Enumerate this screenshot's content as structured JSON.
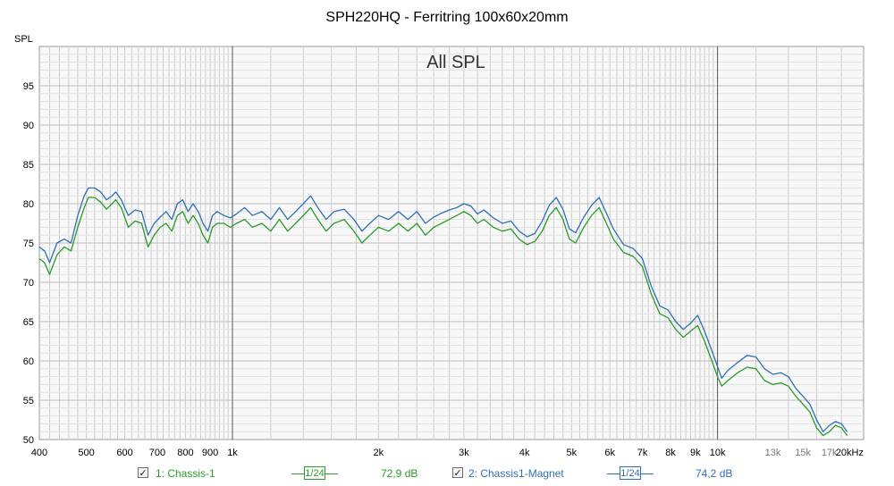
{
  "chart_data": {
    "type": "line",
    "title": "SPH220HQ - Ferritring 100x60x20mm",
    "subtitle": "All SPL",
    "ylabel": "SPL",
    "xunit": "kHz",
    "xscale": "log",
    "xlim": [
      400,
      20000
    ],
    "ylim": [
      50,
      100
    ],
    "grid": true,
    "yticks": [
      50,
      55,
      60,
      65,
      70,
      75,
      80,
      85,
      90,
      95
    ],
    "xticks": [
      {
        "v": 400,
        "label": "400"
      },
      {
        "v": 500,
        "label": "500"
      },
      {
        "v": 600,
        "label": "600"
      },
      {
        "v": 700,
        "label": "700"
      },
      {
        "v": 800,
        "label": "800"
      },
      {
        "v": 900,
        "label": "900"
      },
      {
        "v": 1000,
        "label": "1k"
      },
      {
        "v": 2000,
        "label": "2k"
      },
      {
        "v": 3000,
        "label": "3k"
      },
      {
        "v": 4000,
        "label": "4k"
      },
      {
        "v": 5000,
        "label": "5k"
      },
      {
        "v": 6000,
        "label": "6k"
      },
      {
        "v": 7000,
        "label": "7k"
      },
      {
        "v": 8000,
        "label": "8k"
      },
      {
        "v": 9000,
        "label": "9k"
      },
      {
        "v": 10000,
        "label": "10k"
      },
      {
        "v": 13000,
        "label": "13k"
      },
      {
        "v": 15000,
        "label": "15k"
      },
      {
        "v": 17000,
        "label": "17k"
      },
      {
        "v": 20000,
        "label": "20kHz"
      }
    ],
    "series": [
      {
        "name": "1: Chassis-1",
        "color": "#2a9a2a",
        "smoothing": "1/24",
        "avg_label": "72,9 dB",
        "points": [
          [
            400,
            73.0
          ],
          [
            410,
            72.5
          ],
          [
            420,
            71.0
          ],
          [
            435,
            73.5
          ],
          [
            450,
            74.5
          ],
          [
            465,
            74.0
          ],
          [
            480,
            77.0
          ],
          [
            495,
            79.5
          ],
          [
            505,
            80.8
          ],
          [
            520,
            80.8
          ],
          [
            535,
            80.2
          ],
          [
            550,
            79.3
          ],
          [
            565,
            80.0
          ],
          [
            575,
            80.5
          ],
          [
            590,
            79.5
          ],
          [
            610,
            77.0
          ],
          [
            630,
            77.8
          ],
          [
            650,
            77.5
          ],
          [
            670,
            74.5
          ],
          [
            690,
            76.0
          ],
          [
            710,
            77.0
          ],
          [
            730,
            77.5
          ],
          [
            750,
            76.5
          ],
          [
            770,
            78.5
          ],
          [
            790,
            79.0
          ],
          [
            810,
            77.5
          ],
          [
            830,
            78.5
          ],
          [
            850,
            77.5
          ],
          [
            870,
            76.0
          ],
          [
            890,
            75.0
          ],
          [
            910,
            77.0
          ],
          [
            930,
            77.5
          ],
          [
            960,
            77.5
          ],
          [
            990,
            77.0
          ],
          [
            1020,
            77.5
          ],
          [
            1060,
            78.0
          ],
          [
            1100,
            77.0
          ],
          [
            1150,
            77.5
          ],
          [
            1200,
            76.5
          ],
          [
            1250,
            78.0
          ],
          [
            1300,
            76.5
          ],
          [
            1350,
            77.5
          ],
          [
            1400,
            78.5
          ],
          [
            1450,
            79.5
          ],
          [
            1500,
            78.0
          ],
          [
            1560,
            76.5
          ],
          [
            1620,
            77.5
          ],
          [
            1700,
            78.0
          ],
          [
            1780,
            76.5
          ],
          [
            1850,
            75.0
          ],
          [
            1920,
            76.0
          ],
          [
            2000,
            77.0
          ],
          [
            2100,
            76.5
          ],
          [
            2200,
            77.5
          ],
          [
            2300,
            76.5
          ],
          [
            2400,
            77.5
          ],
          [
            2500,
            76.0
          ],
          [
            2600,
            77.0
          ],
          [
            2700,
            77.5
          ],
          [
            2800,
            78.0
          ],
          [
            2900,
            78.5
          ],
          [
            3000,
            79.0
          ],
          [
            3100,
            78.5
          ],
          [
            3200,
            77.5
          ],
          [
            3300,
            78.0
          ],
          [
            3450,
            77.0
          ],
          [
            3600,
            76.5
          ],
          [
            3750,
            76.8
          ],
          [
            3900,
            75.5
          ],
          [
            4050,
            74.8
          ],
          [
            4200,
            75.2
          ],
          [
            4350,
            76.5
          ],
          [
            4500,
            78.5
          ],
          [
            4650,
            79.5
          ],
          [
            4800,
            78.0
          ],
          [
            4950,
            75.5
          ],
          [
            5100,
            75.0
          ],
          [
            5300,
            77.0
          ],
          [
            5500,
            78.5
          ],
          [
            5700,
            79.5
          ],
          [
            5900,
            77.5
          ],
          [
            6100,
            75.5
          ],
          [
            6400,
            73.8
          ],
          [
            6700,
            73.3
          ],
          [
            7000,
            72.0
          ],
          [
            7300,
            68.5
          ],
          [
            7600,
            66.0
          ],
          [
            7900,
            65.5
          ],
          [
            8200,
            64.0
          ],
          [
            8500,
            63.0
          ],
          [
            8800,
            63.8
          ],
          [
            9100,
            64.5
          ],
          [
            9400,
            62.5
          ],
          [
            9800,
            59.5
          ],
          [
            10000,
            58.0
          ],
          [
            10200,
            56.8
          ],
          [
            10500,
            57.5
          ],
          [
            11000,
            58.5
          ],
          [
            11500,
            59.2
          ],
          [
            12000,
            59.0
          ],
          [
            12500,
            57.5
          ],
          [
            13000,
            57.0
          ],
          [
            13500,
            57.2
          ],
          [
            14000,
            56.8
          ],
          [
            14500,
            55.5
          ],
          [
            15000,
            54.5
          ],
          [
            15500,
            53.5
          ],
          [
            16000,
            51.5
          ],
          [
            16500,
            50.5
          ],
          [
            17000,
            51.0
          ],
          [
            17500,
            51.8
          ],
          [
            18000,
            51.5
          ],
          [
            18500,
            50.5
          ]
        ]
      },
      {
        "name": "2: Chassis1-Magnet",
        "color": "#2f6fb5",
        "smoothing": "1/24",
        "avg_label": "74,2 dB",
        "points": [
          [
            400,
            74.5
          ],
          [
            410,
            74.0
          ],
          [
            420,
            72.5
          ],
          [
            435,
            75.0
          ],
          [
            450,
            75.5
          ],
          [
            465,
            75.0
          ],
          [
            480,
            78.5
          ],
          [
            495,
            81.0
          ],
          [
            505,
            82.0
          ],
          [
            520,
            82.0
          ],
          [
            535,
            81.5
          ],
          [
            550,
            80.5
          ],
          [
            565,
            81.0
          ],
          [
            575,
            81.5
          ],
          [
            590,
            80.5
          ],
          [
            610,
            78.5
          ],
          [
            630,
            79.2
          ],
          [
            650,
            79.0
          ],
          [
            670,
            76.0
          ],
          [
            690,
            77.5
          ],
          [
            710,
            78.3
          ],
          [
            730,
            79.0
          ],
          [
            750,
            78.0
          ],
          [
            770,
            80.0
          ],
          [
            790,
            80.5
          ],
          [
            810,
            79.0
          ],
          [
            830,
            80.0
          ],
          [
            850,
            79.0
          ],
          [
            870,
            77.5
          ],
          [
            890,
            76.5
          ],
          [
            910,
            78.5
          ],
          [
            930,
            79.0
          ],
          [
            960,
            78.5
          ],
          [
            990,
            78.2
          ],
          [
            1020,
            78.7
          ],
          [
            1060,
            79.5
          ],
          [
            1100,
            78.5
          ],
          [
            1150,
            79.0
          ],
          [
            1200,
            78.0
          ],
          [
            1250,
            79.5
          ],
          [
            1300,
            78.0
          ],
          [
            1350,
            79.0
          ],
          [
            1400,
            80.0
          ],
          [
            1450,
            81.0
          ],
          [
            1500,
            79.5
          ],
          [
            1560,
            78.0
          ],
          [
            1620,
            79.0
          ],
          [
            1700,
            79.3
          ],
          [
            1780,
            78.0
          ],
          [
            1850,
            76.5
          ],
          [
            1920,
            77.5
          ],
          [
            2000,
            78.5
          ],
          [
            2100,
            78.0
          ],
          [
            2200,
            79.0
          ],
          [
            2300,
            78.0
          ],
          [
            2400,
            79.0
          ],
          [
            2500,
            77.5
          ],
          [
            2600,
            78.3
          ],
          [
            2700,
            78.8
          ],
          [
            2800,
            79.2
          ],
          [
            2900,
            79.5
          ],
          [
            3000,
            80.0
          ],
          [
            3100,
            79.7
          ],
          [
            3200,
            78.7
          ],
          [
            3300,
            79.2
          ],
          [
            3450,
            78.2
          ],
          [
            3600,
            77.5
          ],
          [
            3750,
            77.8
          ],
          [
            3900,
            76.5
          ],
          [
            4050,
            75.8
          ],
          [
            4200,
            76.2
          ],
          [
            4350,
            77.8
          ],
          [
            4500,
            79.8
          ],
          [
            4650,
            80.8
          ],
          [
            4800,
            79.3
          ],
          [
            4950,
            76.8
          ],
          [
            5100,
            76.3
          ],
          [
            5300,
            78.3
          ],
          [
            5500,
            79.8
          ],
          [
            5700,
            80.8
          ],
          [
            5900,
            78.8
          ],
          [
            6100,
            76.8
          ],
          [
            6400,
            74.8
          ],
          [
            6700,
            74.3
          ],
          [
            7000,
            73.0
          ],
          [
            7300,
            69.5
          ],
          [
            7600,
            67.0
          ],
          [
            7900,
            66.5
          ],
          [
            8200,
            65.0
          ],
          [
            8500,
            64.0
          ],
          [
            8800,
            64.8
          ],
          [
            9100,
            65.8
          ],
          [
            9400,
            63.8
          ],
          [
            9800,
            60.8
          ],
          [
            10000,
            59.3
          ],
          [
            10200,
            57.8
          ],
          [
            10500,
            58.8
          ],
          [
            11000,
            59.8
          ],
          [
            11500,
            60.7
          ],
          [
            12000,
            60.5
          ],
          [
            12500,
            59.0
          ],
          [
            13000,
            58.3
          ],
          [
            13500,
            58.5
          ],
          [
            14000,
            58.0
          ],
          [
            14500,
            56.5
          ],
          [
            15000,
            55.5
          ],
          [
            15500,
            54.5
          ],
          [
            16000,
            52.5
          ],
          [
            16500,
            51.0
          ],
          [
            17000,
            51.8
          ],
          [
            17500,
            52.3
          ],
          [
            18000,
            52.0
          ],
          [
            18500,
            51.0
          ]
        ]
      }
    ]
  },
  "legend": {
    "s1": {
      "checkbox": "✓",
      "name": "1: Chassis-1",
      "smoothing": "1/24",
      "avg": "72,9 dB"
    },
    "s2": {
      "checkbox": "✓",
      "name": "2: Chassis1-Magnet",
      "smoothing": "1/24",
      "avg": "74,2 dB"
    }
  },
  "colors": {
    "plot_bg": "#f8f8f8",
    "major_grid": "#555555",
    "minor_grid": "#cccccc"
  }
}
